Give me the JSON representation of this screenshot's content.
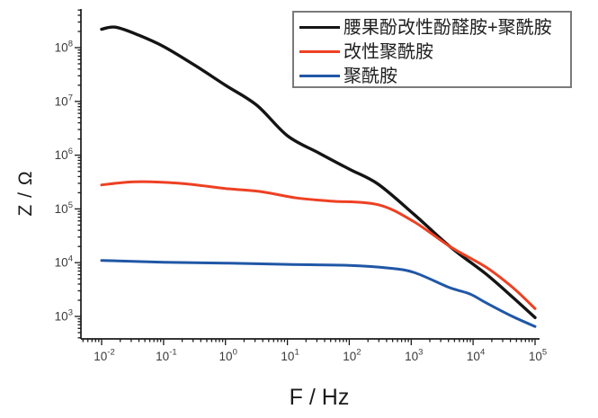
{
  "chart_data": {
    "type": "line",
    "title": "",
    "xlabel": "F / Hz",
    "ylabel": "Z / Ω",
    "x_scale": "log",
    "y_scale": "log",
    "x_range": [
      0.00463,
      117000
    ],
    "y_range": [
      382,
      523000000
    ],
    "x_tick_exponents": [
      -2,
      -1,
      0,
      1,
      2,
      3,
      4,
      5
    ],
    "y_tick_exponents": [
      3,
      4,
      5,
      6,
      7,
      8
    ],
    "tick_format": "10^exponent",
    "x_tick_labels": [
      "10^-2",
      "10^-1",
      "10^0",
      "10^1",
      "10^2",
      "10^3",
      "10^4",
      "10^5"
    ],
    "y_tick_labels": [
      "10^3",
      "10^4",
      "10^5",
      "10^6",
      "10^7",
      "10^8"
    ],
    "grid": false,
    "legend_position": "top-right",
    "axis_color": "#1a1a1a",
    "tick_label_color": "#3a3a3a",
    "legend_border_color": "#7a7a7a",
    "series": [
      {
        "key": "cashew-phenol-modified-phenalkamine-plus-polyamide",
        "name": "腰果酚改性酚醛胺+聚酰胺",
        "color": "#141414",
        "width": 3.4,
        "points": [
          [
            0.01,
            220000000
          ],
          [
            0.017,
            240000000
          ],
          [
            0.04,
            170000000
          ],
          [
            0.1,
            105000000
          ],
          [
            0.32,
            47000000
          ],
          [
            1,
            20000000
          ],
          [
            3.2,
            8500000
          ],
          [
            10,
            2300000
          ],
          [
            32,
            1100000
          ],
          [
            100,
            550000
          ],
          [
            290,
            290000
          ],
          [
            1100,
            80000
          ],
          [
            4200,
            20000
          ],
          [
            16000,
            6200
          ],
          [
            43000,
            2300
          ],
          [
            100000,
            950
          ]
        ]
      },
      {
        "key": "modified-polyamide",
        "name": "改性聚酰胺",
        "color": "#ee4023",
        "width": 3,
        "points": [
          [
            0.01,
            280000
          ],
          [
            0.035,
            320000
          ],
          [
            0.18,
            300000
          ],
          [
            1,
            240000
          ],
          [
            3.7,
            210000
          ],
          [
            14,
            160000
          ],
          [
            50,
            140000
          ],
          [
            290,
            120000
          ],
          [
            1100,
            58000
          ],
          [
            4200,
            20000
          ],
          [
            16000,
            8300
          ],
          [
            43000,
            3500
          ],
          [
            100000,
            1400
          ]
        ]
      },
      {
        "key": "polyamide",
        "name": "聚酰胺",
        "color": "#2057a6",
        "width": 3,
        "points": [
          [
            0.01,
            11000
          ],
          [
            0.1,
            10200
          ],
          [
            1,
            9800
          ],
          [
            10,
            9300
          ],
          [
            100,
            8900
          ],
          [
            400,
            8000
          ],
          [
            1100,
            6600
          ],
          [
            4000,
            3500
          ],
          [
            9000,
            2600
          ],
          [
            16000,
            1800
          ],
          [
            43000,
            1000
          ],
          [
            100000,
            650
          ]
        ]
      }
    ]
  }
}
